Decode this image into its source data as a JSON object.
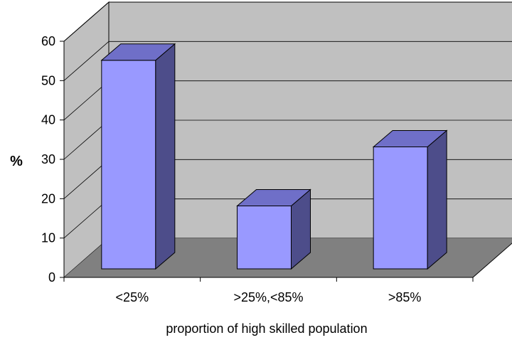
{
  "chart_data": {
    "type": "bar",
    "title": "",
    "xlabel": "proportion of high skilled population",
    "ylabel": "%",
    "categories": [
      "<25%",
      ">25%,<85%",
      ">85%"
    ],
    "values": [
      53,
      16,
      31
    ],
    "ylim": [
      0,
      60
    ],
    "yticks": [
      0,
      10,
      20,
      30,
      40,
      50,
      60
    ],
    "grid": true,
    "legend": "none",
    "colors": {
      "bar_front": "#9999ff",
      "bar_side": "#4d4d8a",
      "bar_top": "#6f6fc8",
      "back_wall": "#c0c0c0",
      "side_wall": "#c0c0c0",
      "floor": "#808080",
      "gridline": "#000000",
      "axis": "#000000"
    }
  }
}
